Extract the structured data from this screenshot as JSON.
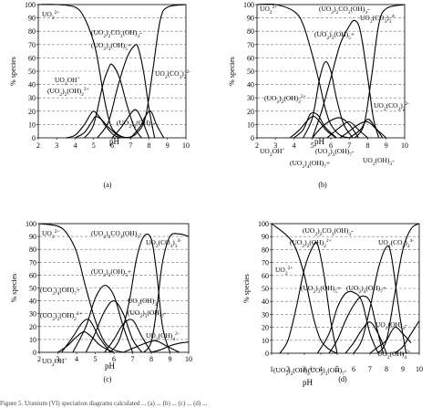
{
  "chart_data": [
    {
      "type": "line",
      "panel_label": "(a)",
      "ylabel": "% species",
      "xlabel": "pH",
      "xlim": [
        2,
        10
      ],
      "ylim": [
        0,
        100
      ],
      "xticks": [
        2,
        3,
        4,
        5,
        6,
        7,
        8,
        9,
        10
      ],
      "yticks": [
        0,
        10,
        20,
        30,
        40,
        50,
        60,
        70,
        80,
        90,
        100
      ],
      "grid": "horizontal dashed",
      "series": [
        {
          "name": "UO2 2+",
          "x": [
            2,
            3,
            4,
            4.5,
            5,
            5.25,
            5.5,
            5.75,
            6,
            6.5,
            7
          ],
          "values": [
            100,
            100,
            98,
            90,
            72,
            56,
            35,
            18,
            7,
            1,
            0
          ]
        },
        {
          "name": "UO2OH+",
          "x": [
            3.5,
            4,
            4.5,
            4.8,
            5,
            5.3,
            5.7,
            6.1,
            6.5
          ],
          "values": [
            0,
            2,
            10,
            17,
            20,
            16,
            8,
            2,
            0
          ]
        },
        {
          "name": "(UO2)2(OH)2 2+",
          "x": [
            4,
            4.5,
            4.9,
            5.1,
            5.4,
            5.8,
            6.3,
            6.8
          ],
          "values": [
            0,
            4,
            12,
            16,
            14,
            8,
            2,
            0
          ]
        },
        {
          "name": "(UO2)3(OH)5+",
          "x": [
            4.5,
            5,
            5.5,
            5.8,
            6,
            6.4,
            6.8,
            7.2,
            7.6
          ],
          "values": [
            0,
            10,
            40,
            52,
            55,
            45,
            25,
            8,
            0
          ]
        },
        {
          "name": "(UO2)2CO3(OH)3-",
          "x": [
            5.2,
            5.8,
            6.3,
            6.8,
            7.2,
            7.4,
            7.7,
            8,
            8.3
          ],
          "values": [
            0,
            12,
            38,
            60,
            69,
            68,
            50,
            22,
            0
          ]
        },
        {
          "name": "(UO2)3(OH)7-",
          "x": [
            6,
            6.5,
            7,
            7.3,
            7.6,
            8
          ],
          "values": [
            0,
            8,
            18,
            21,
            14,
            0
          ]
        },
        {
          "name": "UO2(CO3)2 2-",
          "x": [
            7,
            7.5,
            7.8,
            8.1,
            8.4,
            8.8
          ],
          "values": [
            0,
            8,
            16,
            20,
            10,
            0
          ]
        },
        {
          "name": "UO2(CO3)3 4-",
          "x": [
            6.8,
            7.3,
            7.8,
            8.2,
            8.6,
            9,
            10
          ],
          "values": [
            0,
            3,
            15,
            50,
            88,
            98,
            100
          ]
        }
      ],
      "labels": [
        "UO2 2+",
        "(UO2)2CO3(OH)3-",
        "(UO2)3(OH)5+",
        "(UO2)2(OH)2 2+",
        "UO2OH+",
        "(UO2)3(OH)7-",
        "UO2(CO3)2 2-",
        "pH"
      ]
    },
    {
      "type": "line",
      "panel_label": "(b)",
      "ylabel": "% species",
      "xlabel": "pH",
      "xlim": [
        2,
        10
      ],
      "ylim": [
        0,
        100
      ],
      "xticks": [
        2,
        3,
        4,
        5,
        6,
        7,
        8,
        9,
        10
      ],
      "yticks": [
        0,
        10,
        20,
        30,
        40,
        50,
        60,
        70,
        80,
        90,
        100
      ],
      "grid": "horizontal dashed",
      "series": [
        {
          "name": "UO2 2+",
          "x": [
            2,
            3,
            4,
            4.5,
            5,
            5.4,
            5.7,
            6,
            6.5,
            7
          ],
          "values": [
            100,
            100,
            95,
            85,
            62,
            40,
            22,
            10,
            2,
            0
          ]
        },
        {
          "name": "UO2OH+",
          "x": [
            3.8,
            4.3,
            4.8,
            5.1,
            5.4,
            5.8,
            6.3
          ],
          "values": [
            0,
            6,
            14,
            16,
            12,
            5,
            0
          ]
        },
        {
          "name": "(UO2)2(OH)2 2+",
          "x": [
            4,
            4.5,
            4.9,
            5.3,
            5.7,
            6.3
          ],
          "values": [
            0,
            6,
            18,
            17,
            8,
            0
          ]
        },
        {
          "name": "(UO2)3(OH)5+",
          "x": [
            4.5,
            5,
            5.4,
            5.7,
            6,
            6.3,
            6.7,
            7.2
          ],
          "values": [
            0,
            15,
            45,
            57,
            50,
            30,
            10,
            0
          ]
        },
        {
          "name": "(UO2)4(OH)7+",
          "x": [
            5,
            5.5,
            6,
            6.5,
            7,
            7.5
          ],
          "values": [
            0,
            8,
            13,
            15,
            10,
            0
          ]
        },
        {
          "name": "(UO2)3(OH)7-",
          "x": [
            5.8,
            6.5,
            7,
            7.5,
            8
          ],
          "values": [
            0,
            8,
            12,
            6,
            0
          ]
        },
        {
          "name": "(UO2)2CO3(OH)3-",
          "x": [
            5,
            5.5,
            6,
            6.5,
            7,
            7.3,
            7.6,
            8,
            8.3,
            8.6
          ],
          "values": [
            0,
            20,
            45,
            70,
            84,
            88,
            80,
            45,
            15,
            0
          ]
        },
        {
          "name": "UO2(OH)3-",
          "x": [
            6.5,
            7,
            7.5,
            8,
            8.5,
            9
          ],
          "values": [
            0,
            5,
            10,
            12,
            6,
            0
          ]
        },
        {
          "name": "UO2(CO3)2 2-",
          "x": [
            7,
            7.6,
            8,
            8.4,
            8.8
          ],
          "values": [
            0,
            6,
            14,
            8,
            0
          ]
        },
        {
          "name": "UO2(CO3)3 4-",
          "x": [
            7.3,
            7.8,
            8.2,
            8.6,
            9,
            10
          ],
          "values": [
            0,
            10,
            45,
            85,
            97,
            100
          ]
        }
      ],
      "labels": [
        "UO2 2+",
        "(UO2)2CO3(OH)3-",
        "UO2(CO3)3 4-",
        "(UO2)3(OH)5+",
        "(UO2)2(OH)2 2+",
        "(UO2)3(OH)7-",
        "UO2(CO3)2 2-",
        "UO2OH+",
        "pH",
        "(UO2)4(OH)7+",
        "UO2(OH)3-"
      ]
    },
    {
      "type": "line",
      "panel_label": "(c)",
      "ylabel": "% species",
      "xlabel": "pH",
      "xlim": [
        2,
        10
      ],
      "ylim": [
        0,
        100
      ],
      "xticks": [
        2,
        3,
        4,
        5,
        6,
        7,
        8,
        9,
        10
      ],
      "yticks": [
        0,
        10,
        20,
        30,
        40,
        50,
        60,
        70,
        80,
        90,
        100
      ],
      "grid": "horizontal dashed",
      "series": [
        {
          "name": "UO2 2+",
          "x": [
            2,
            3,
            3.5,
            4,
            4.5,
            5,
            5.5,
            6,
            6.5
          ],
          "values": [
            100,
            98,
            92,
            78,
            50,
            25,
            8,
            2,
            0
          ]
        },
        {
          "name": "UO2OH+",
          "x": [
            3,
            3.5,
            4,
            4.4,
            4.8,
            5.3,
            6
          ],
          "values": [
            0,
            5,
            12,
            16,
            12,
            5,
            0
          ]
        },
        {
          "name": "(UO2)2(OH)2 2+",
          "x": [
            3.2,
            3.8,
            4.3,
            4.7,
            5.2,
            5.8
          ],
          "values": [
            0,
            12,
            23,
            25,
            12,
            0
          ]
        },
        {
          "name": "(UO2)3(OH)5+",
          "x": [
            3.8,
            4.5,
            5,
            5.5,
            6,
            6.5,
            7
          ],
          "values": [
            0,
            20,
            42,
            52,
            44,
            20,
            0
          ]
        },
        {
          "name": "(UO2)4(OH)7+",
          "x": [
            4.5,
            5,
            5.5,
            6,
            6.5,
            7,
            7.5
          ],
          "values": [
            0,
            15,
            32,
            40,
            30,
            10,
            0
          ]
        },
        {
          "name": "(UO2)3(OH)7-",
          "x": [
            5.5,
            6,
            6.5,
            7,
            7.5,
            8
          ],
          "values": [
            0,
            10,
            22,
            25,
            12,
            0
          ]
        },
        {
          "name": "(UO2)2CO3(OH)3-",
          "x": [
            5.8,
            6.3,
            6.8,
            7.2,
            7.6,
            8,
            8.3,
            8.6,
            9
          ],
          "values": [
            0,
            10,
            38,
            72,
            90,
            88,
            60,
            20,
            0
          ]
        },
        {
          "name": "UO2(OH)3-",
          "x": [
            6.5,
            7.5,
            8.2,
            8.8,
            9.5
          ],
          "values": [
            0,
            6,
            9,
            5,
            0
          ]
        },
        {
          "name": "UO2(OH)4 2-",
          "x": [
            8,
            8.5,
            9,
            9.5,
            10
          ],
          "values": [
            0,
            2,
            5,
            7,
            8
          ]
        },
        {
          "name": "UO2(CO3)3 4-",
          "x": [
            7.6,
            8,
            8.3,
            8.6,
            9,
            9.5,
            10
          ],
          "values": [
            0,
            8,
            35,
            70,
            90,
            92,
            90
          ]
        }
      ],
      "labels": [
        "UO2 2+",
        "(UO2)2CO3(OH)3-",
        "UO2(CO3)3 4-",
        "(UO2)3(OH)5+",
        "(UO2)4(OH)7+",
        "(UO2)2(OH)2 2+",
        "(UO2)3(OH)7-",
        "UO2(OH)3-",
        "UO2(OH)4 2-",
        "UO2OH+",
        "pH"
      ]
    },
    {
      "type": "line",
      "panel_label": "(d)",
      "ylabel": "% species",
      "xlabel": "pH",
      "xlim": [
        1,
        10
      ],
      "ylim": [
        0,
        100
      ],
      "xticks": [
        1,
        2,
        3,
        4,
        5,
        6,
        7,
        8,
        9,
        10
      ],
      "yticks": [
        0,
        10,
        20,
        30,
        40,
        50,
        60,
        70,
        80,
        90,
        100
      ],
      "grid": "horizontal dashed",
      "series": [
        {
          "name": "UO2 2+",
          "x": [
            1,
            2,
            2.5,
            3,
            3.3,
            3.6,
            4,
            4.5,
            5
          ],
          "values": [
            100,
            90,
            80,
            60,
            42,
            25,
            10,
            3,
            0
          ]
        },
        {
          "name": "(UO2)2(OH)2 2+",
          "x": [
            1.5,
            2,
            2.5,
            3,
            3.5,
            3.8,
            4.2,
            4.6,
            5
          ],
          "values": [
            0,
            10,
            35,
            65,
            82,
            84,
            60,
            25,
            0
          ]
        },
        {
          "name": "(UO2)3(OH)5+",
          "x": [
            3.8,
            4.5,
            5,
            5.5,
            6,
            6.5,
            7,
            7.5
          ],
          "values": [
            0,
            15,
            35,
            46,
            47,
            40,
            15,
            0
          ]
        },
        {
          "name": "(UO2)4(OH)7+",
          "x": [
            4.5,
            5,
            5.5,
            6,
            6.5,
            7,
            7.4,
            7.8
          ],
          "values": [
            0,
            10,
            25,
            37,
            44,
            40,
            20,
            0
          ]
        },
        {
          "name": "(UO2)3(OH)7-",
          "x": [
            5.5,
            6,
            6.5,
            7,
            7.5,
            8
          ],
          "values": [
            0,
            8,
            18,
            24,
            15,
            0
          ]
        },
        {
          "name": "(UO2)2CO3(OH)3-",
          "x": [
            6,
            6.5,
            7,
            7.5,
            8,
            8.3,
            8.8,
            9.2
          ],
          "values": [
            0,
            10,
            35,
            65,
            82,
            75,
            30,
            0
          ]
        },
        {
          "name": "UO2(OH)3-",
          "x": [
            7,
            7.5,
            8,
            8.5,
            9,
            9.5
          ],
          "values": [
            0,
            5,
            10,
            20,
            15,
            8
          ]
        },
        {
          "name": "UO2(OH)4 2-",
          "x": [
            8.5,
            9,
            9.5,
            10
          ],
          "values": [
            0,
            5,
            15,
            25
          ]
        },
        {
          "name": "UO2(CO3)3 4-",
          "x": [
            7.5,
            8,
            8.5,
            9,
            9.5,
            10
          ],
          "values": [
            0,
            10,
            45,
            80,
            96,
            100
          ]
        }
      ],
      "labels": [
        "(UO2)2CO3(OH)3-",
        "UO2(CO3)3 4-",
        "(UO2)2(OH)2 2+",
        "UO2 2+",
        "(UO2)3(OH)5+",
        "(UO2)4(OH)7+",
        "UO2(OH)3-",
        "UO2(OH)4 2-",
        "(UO2)3(OH)7-",
        "(UO2)2(OH)2 2+",
        "pH"
      ]
    }
  ],
  "caption": "Figure 5. Uranium (VI) speciation diagrams calculated ... (a) ... (b) ... (c) ... (d) ..."
}
